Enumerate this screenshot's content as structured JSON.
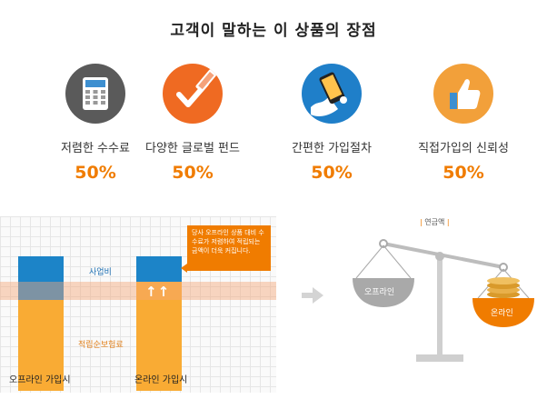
{
  "header": {
    "title": "고객이 말하는 이 상품의 장점"
  },
  "features": [
    {
      "label": "저렴한 수수료",
      "percent": "50%",
      "icon": "calculator-icon",
      "color": "#5a5a5a"
    },
    {
      "label": "다양한 글로벌 펀드",
      "percent": "50%",
      "icon": "checkmark-icon",
      "color": "#ef6a22"
    },
    {
      "label": "간편한 가입절차",
      "percent": "50%",
      "icon": "phone-hand-icon",
      "color": "#1f7fc9"
    },
    {
      "label": "직접가입의 신뢰성",
      "percent": "50%",
      "icon": "thumbs-up-icon",
      "color": "#f2a03a"
    }
  ],
  "diagram": {
    "bar1_label": "오프라인 가입시",
    "bar2_label": "온라인 가입시",
    "business_cost": "사업비",
    "savings_premium": "적립순보험료",
    "up_arrows": "↑↑",
    "callout": "당사 오프라인 상품 대비 수수료가 저렴하여 적립되는 금액이 더욱 커집니다.",
    "scale_title": "연금액",
    "offline_pan": "오프라인",
    "online_pan": "온라인"
  },
  "colors": {
    "accent": "#f07c00",
    "blue": "#1c84c8",
    "yellow": "#f9ab34"
  }
}
